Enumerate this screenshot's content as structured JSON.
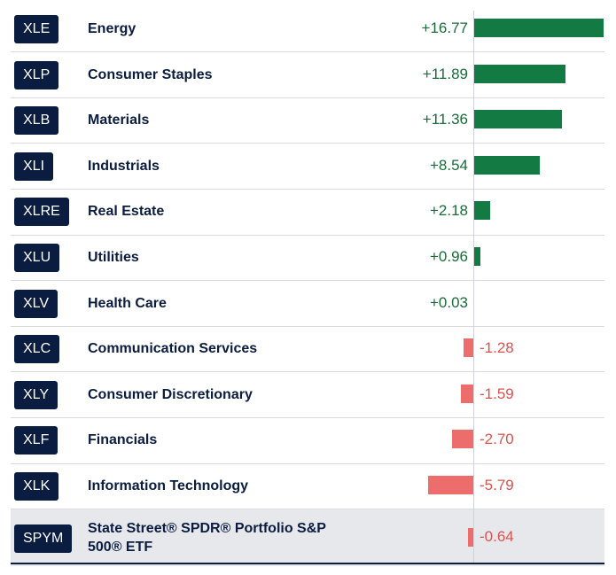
{
  "chart_data": {
    "type": "bar",
    "orientation": "horizontal",
    "title": "",
    "xlabel": "",
    "ylabel": "",
    "xlim": [
      -6,
      17
    ],
    "rows": [
      {
        "ticker": "XLE",
        "name": "Energy",
        "value": 16.77,
        "label": "+16.77"
      },
      {
        "ticker": "XLP",
        "name": "Consumer Staples",
        "value": 11.89,
        "label": "+11.89"
      },
      {
        "ticker": "XLB",
        "name": "Materials",
        "value": 11.36,
        "label": "+11.36"
      },
      {
        "ticker": "XLI",
        "name": "Industrials",
        "value": 8.54,
        "label": "+8.54"
      },
      {
        "ticker": "XLRE",
        "name": "Real Estate",
        "value": 2.18,
        "label": "+2.18"
      },
      {
        "ticker": "XLU",
        "name": "Utilities",
        "value": 0.96,
        "label": "+0.96"
      },
      {
        "ticker": "XLV",
        "name": "Health Care",
        "value": 0.03,
        "label": "+0.03"
      },
      {
        "ticker": "XLC",
        "name": "Communication Services",
        "value": -1.28,
        "label": "-1.28"
      },
      {
        "ticker": "XLY",
        "name": "Consumer Discretionary",
        "value": -1.59,
        "label": "-1.59"
      },
      {
        "ticker": "XLF",
        "name": "Financials",
        "value": -2.7,
        "label": "-2.70"
      },
      {
        "ticker": "XLK",
        "name": "Information Technology",
        "value": -5.79,
        "label": "-5.79"
      },
      {
        "ticker": "SPYM",
        "name": "State Street® SPDR® Portfolio S&P 500® ETF",
        "value": -0.64,
        "label": "-0.64",
        "highlight": true
      }
    ]
  },
  "colors": {
    "positive": "#137a43",
    "negative": "#ec6d6b",
    "ticker_bg": "#0a1c3f",
    "name_text": "#0a1c3f",
    "positive_text": "#1b6b3a",
    "negative_text": "#d9534f",
    "highlight_bg": "#e6e8ec"
  }
}
